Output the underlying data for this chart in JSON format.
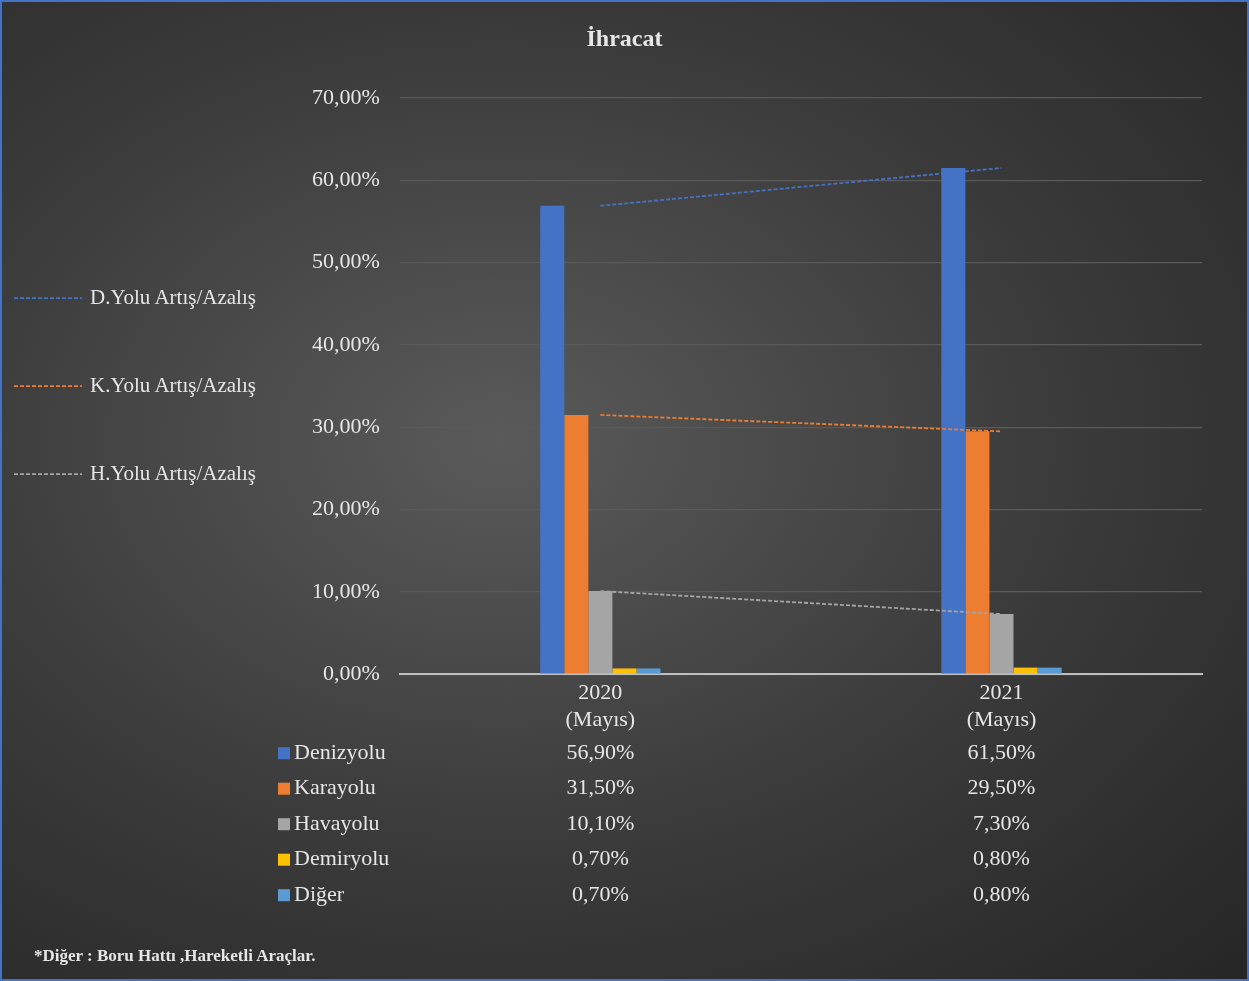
{
  "chart_data": {
    "type": "bar",
    "title": "İhracat",
    "categories": [
      "2020\n(Mayıs)",
      "2021\n(Mayıs)"
    ],
    "series": [
      {
        "name": "Denizyolu",
        "color": "#4472c4",
        "values": [
          56.9,
          61.5
        ]
      },
      {
        "name": "Karayolu",
        "color": "#ed7d31",
        "values": [
          31.5,
          29.5
        ]
      },
      {
        "name": "Havayolu",
        "color": "#a5a5a5",
        "values": [
          10.1,
          7.3
        ]
      },
      {
        "name": "Demiryolu",
        "color": "#ffc000",
        "values": [
          0.7,
          0.8
        ]
      },
      {
        "name": "Diğer",
        "color": "#5b9bd5",
        "values": [
          0.7,
          0.8
        ]
      },
      {
        "name": "D.Yolu Artış/Azalış",
        "type": "line",
        "line_style": "dashed",
        "color": "#4472c4",
        "values": [
          56.9,
          61.5
        ]
      },
      {
        "name": "K.Yolu Artış/Azalış",
        "type": "line",
        "line_style": "dashed",
        "color": "#ed7d31",
        "values": [
          31.5,
          29.5
        ]
      },
      {
        "name": "H.Yolu Artış/Azalış",
        "type": "line",
        "line_style": "dashed",
        "color": "#a5a5a5",
        "values": [
          10.1,
          7.3
        ]
      }
    ],
    "ylim": [
      0,
      70
    ],
    "yticks": [
      {
        "value": 0,
        "label": "0,00%"
      },
      {
        "value": 10,
        "label": "10,00%"
      },
      {
        "value": 20,
        "label": "20,00%"
      },
      {
        "value": 30,
        "label": "30,00%"
      },
      {
        "value": 40,
        "label": "40,00%"
      },
      {
        "value": 50,
        "label": "50,00%"
      },
      {
        "value": 60,
        "label": "60,00%"
      },
      {
        "value": 70,
        "label": "70,00%"
      }
    ],
    "grid": "y",
    "legend": "left",
    "value_labels": [
      [
        "56,90%",
        "61,50%"
      ],
      [
        "31,50%",
        "29,50%"
      ],
      [
        "10,10%",
        "7,30%"
      ],
      [
        "0,70%",
        "0,80%"
      ],
      [
        "0,70%",
        "0,80%"
      ]
    ],
    "annotations": [
      "*Diğer : Boru Hattı ,Hareketli Araçlar."
    ]
  }
}
